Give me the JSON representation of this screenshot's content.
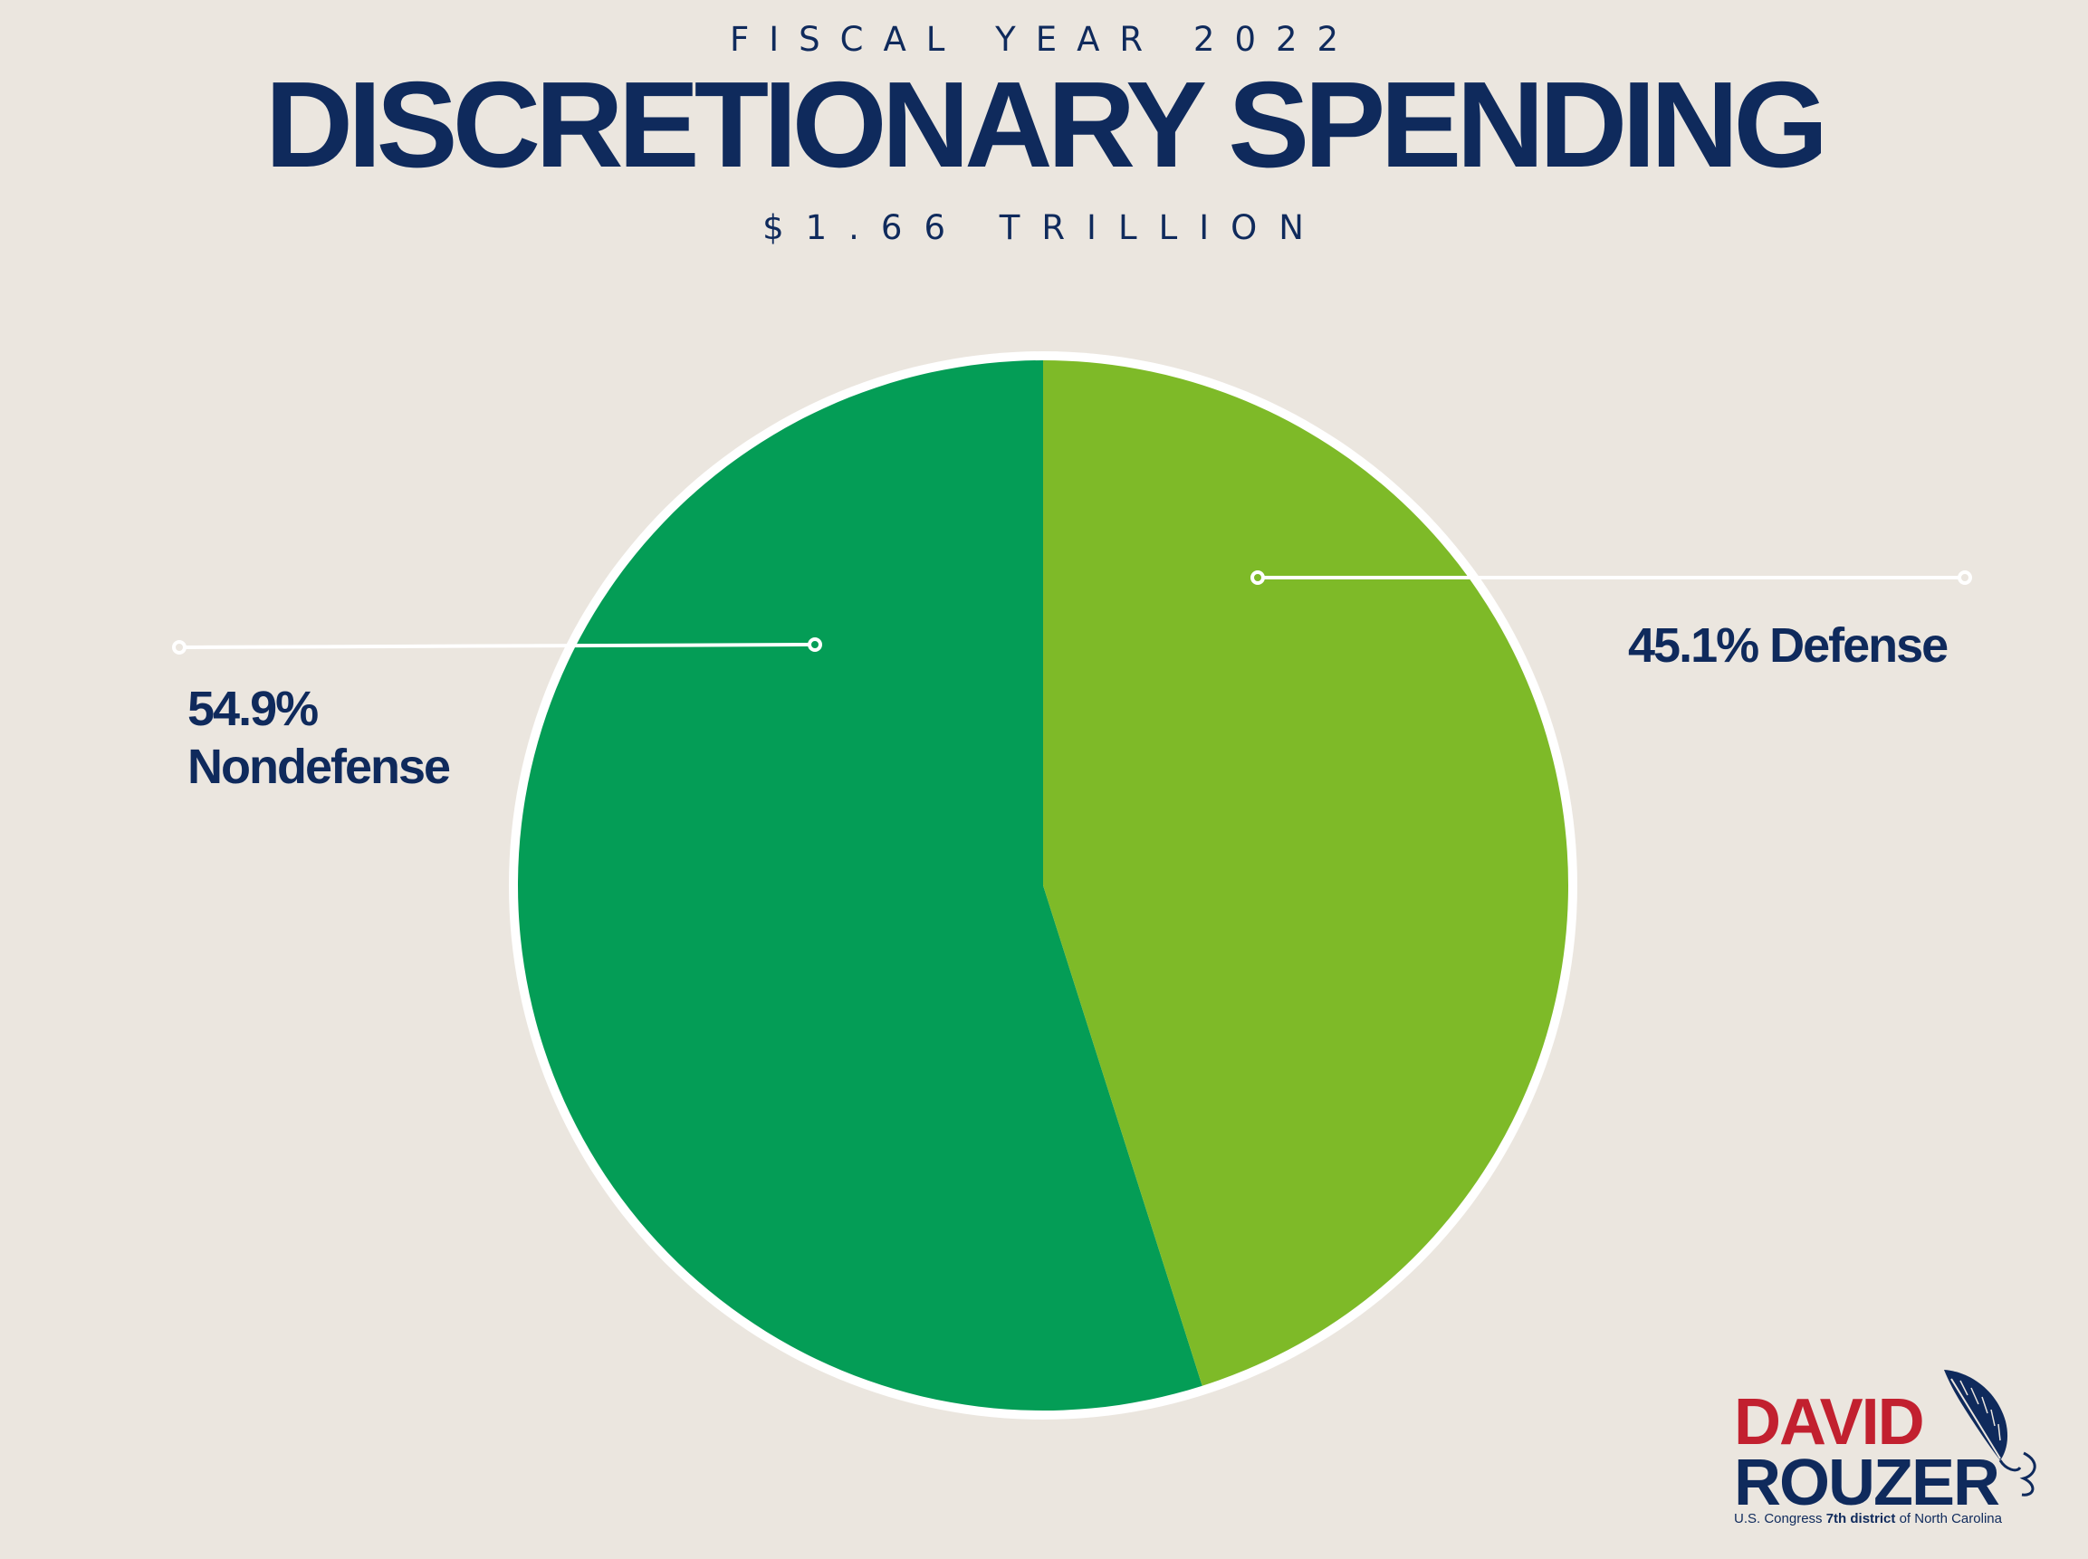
{
  "header": {
    "kicker": "FISCAL YEAR 2022",
    "title": "DISCRETIONARY SPENDING",
    "subtitle": "$1.66 TRILLION"
  },
  "chart_data": {
    "type": "pie",
    "title": "DISCRETIONARY SPENDING",
    "total": "$1.66 TRILLION",
    "slices": [
      {
        "name": "Nondefense",
        "value": 54.9,
        "label_line1": "54.9%",
        "label_line2": "Nondefense",
        "color": "#049d56"
      },
      {
        "name": "Defense",
        "value": 45.1,
        "label": "45.1% Defense",
        "color": "#7eba28"
      }
    ],
    "start_angle": "12 o'clock",
    "direction": "clockwise",
    "border_color": "#ffffff"
  },
  "logo": {
    "name_line1": "DAVID",
    "name_line2": "ROUZER",
    "tagline_a": "U.S. Congress ",
    "tagline_b": "7th district",
    "tagline_c": " of North Carolina",
    "colors": {
      "red": "#c2202f",
      "navy": "#0f2a5c"
    }
  },
  "colors": {
    "background": "#ebe6df",
    "text": "#0f2a5c"
  }
}
